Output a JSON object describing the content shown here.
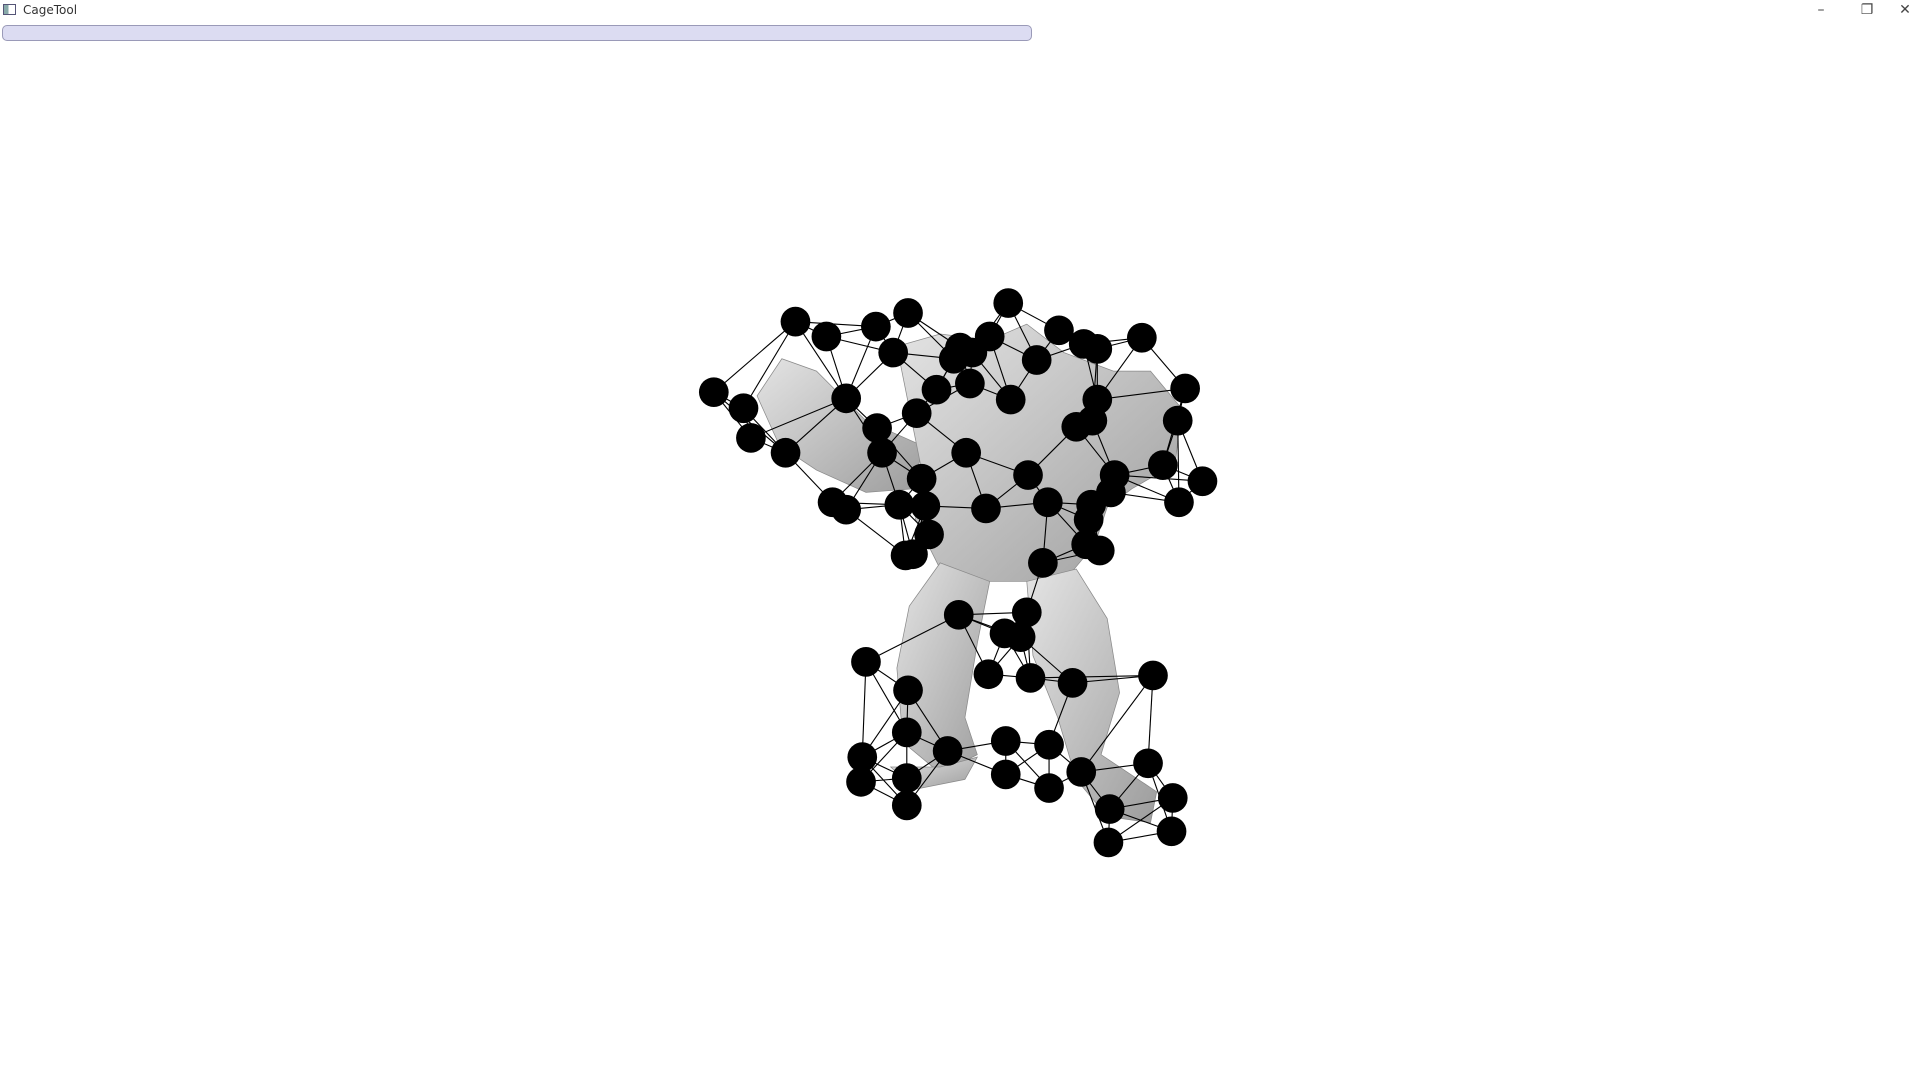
{
  "window": {
    "title": "CageTool"
  }
}
